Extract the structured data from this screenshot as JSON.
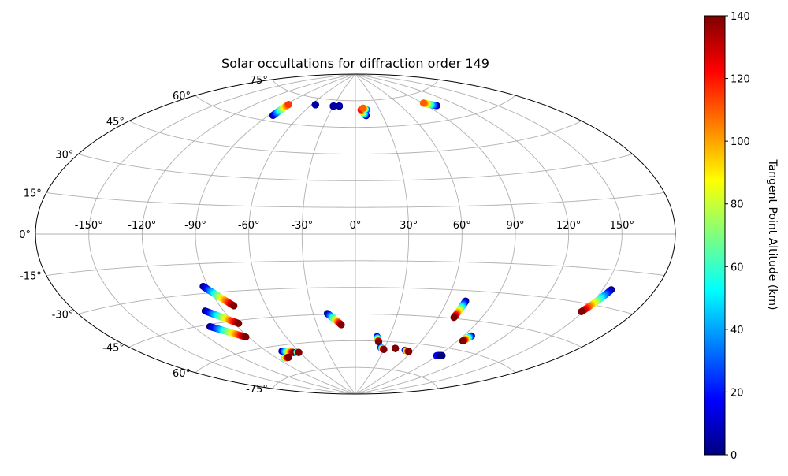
{
  "chart_data": {
    "type": "scatter",
    "projection": "aitoff",
    "title": "Solar occultations for diffraction order 149",
    "grid": true,
    "x_tick_labels": [
      "-150°",
      "-120°",
      "-90°",
      "-60°",
      "-30°",
      "0°",
      "30°",
      "60°",
      "90°",
      "120°",
      "150°"
    ],
    "x_tick_values": [
      -150,
      -120,
      -90,
      -60,
      -30,
      0,
      30,
      60,
      90,
      120,
      150
    ],
    "y_tick_labels": [
      "-75°",
      "-60°",
      "-45°",
      "-30°",
      "-15°",
      "0°",
      "15°",
      "30°",
      "45°",
      "60°",
      "75°"
    ],
    "y_tick_values": [
      -75,
      -60,
      -45,
      -30,
      -15,
      0,
      15,
      30,
      45,
      60,
      75
    ],
    "colorbar": {
      "label": "Tangent Point Altitude (km)",
      "colormap": "jet",
      "range": [
        0,
        140
      ],
      "tick_labels": [
        "0",
        "20",
        "40",
        "60",
        "80",
        "100",
        "120",
        "140"
      ],
      "tick_values": [
        0,
        20,
        40,
        60,
        80,
        100,
        120,
        140
      ]
    },
    "colormap_stops": [
      "#00007f",
      "#0000ff",
      "#007fff",
      "#00ffff",
      "#7fff7f",
      "#ffff00",
      "#ff7f00",
      "#ff0000",
      "#7f0000"
    ],
    "series": [
      {
        "lon_start": -86,
        "lat_start": 63.0,
        "lon_end": -87,
        "lat_end": 69.5,
        "alt_start": 0,
        "alt_end": 115
      },
      {
        "lon_start": -55,
        "lat_start": 71.5,
        "lon_end": -55,
        "lat_end": 71.5,
        "alt_start": 5,
        "alt_end": 5
      },
      {
        "lon_start": -30,
        "lat_start": 71.6,
        "lon_end": -30,
        "lat_end": 71.6,
        "alt_start": 5,
        "alt_end": 5
      },
      {
        "lon_start": -22,
        "lat_start": 71.8,
        "lon_end": -22,
        "lat_end": 71.8,
        "alt_start": 5,
        "alt_end": 5
      },
      {
        "lon_start": 12,
        "lat_start": 66.5,
        "lon_end": 7,
        "lat_end": 69.8,
        "alt_start": 0,
        "alt_end": 120
      },
      {
        "lon_start": 14,
        "lat_start": 69.8,
        "lon_end": 10,
        "lat_end": 70.8,
        "alt_start": 10,
        "alt_end": 110
      },
      {
        "lon_start": 100,
        "lat_start": 67.5,
        "lon_end": 91,
        "lat_end": 70.0,
        "alt_start": 0,
        "alt_end": 110
      },
      {
        "lon_start": -93,
        "lat_start": -26.5,
        "lon_end": -81,
        "lat_end": -37.5,
        "alt_start": 0,
        "alt_end": 140
      },
      {
        "lon_start": -102,
        "lat_start": -38.5,
        "lon_end": -87,
        "lat_end": -46.5,
        "alt_start": 0,
        "alt_end": 140
      },
      {
        "lon_start": -109,
        "lat_start": -46.0,
        "lon_end": -92,
        "lat_end": -53.5,
        "alt_start": 0,
        "alt_end": 140
      },
      {
        "lon_start": -20,
        "lat_start": -44.5,
        "lon_end": -11,
        "lat_end": -51.0,
        "alt_start": 0,
        "alt_end": 140
      },
      {
        "lon_start": 155,
        "lat_start": -23.0,
        "lon_end": 149,
        "lat_end": -33.5,
        "alt_start": 0,
        "alt_end": 140
      },
      {
        "lon_start": 72,
        "lat_start": -35.5,
        "lon_end": 71,
        "lat_end": -44.5,
        "alt_start": 0,
        "alt_end": 140
      },
      {
        "lon_start": 96,
        "lat_start": -52.5,
        "lon_end": 94,
        "lat_end": -55.5,
        "alt_start": 0,
        "alt_end": 140
      },
      {
        "lon_start": -76,
        "lat_start": -63.0,
        "lon_end": -66,
        "lat_end": -64.5,
        "alt_start": 0,
        "alt_end": 140
      },
      {
        "lon_start": 19,
        "lat_start": -57.5,
        "lon_end": 22,
        "lat_end": -60.5,
        "alt_start": 0,
        "alt_end": 140
      },
      {
        "lon_start": 26,
        "lat_start": -63.5,
        "lon_end": 30,
        "lat_end": -64.5,
        "alt_start": 0,
        "alt_end": 140
      },
      {
        "lon_start": 41,
        "lat_start": -63.5,
        "lon_end": 41,
        "lat_end": -63.5,
        "alt_start": 140,
        "alt_end": 140
      },
      {
        "lon_start": 52,
        "lat_start": -64.0,
        "lon_end": 57,
        "lat_end": -64.5,
        "alt_start": 0,
        "alt_end": 140
      },
      {
        "lon_start": -63,
        "lat_start": -64.5,
        "lon_end": -61,
        "lat_end": -64.8,
        "alt_start": 10,
        "alt_end": 140
      },
      {
        "lon_start": -82,
        "lat_start": -66.5,
        "lon_end": -77,
        "lat_end": -66.5,
        "alt_start": 60,
        "alt_end": 140
      },
      {
        "lon_start": 89,
        "lat_start": -64.5,
        "lon_end": 94,
        "lat_end": -64.0,
        "alt_start": 20,
        "alt_end": 0
      }
    ]
  }
}
